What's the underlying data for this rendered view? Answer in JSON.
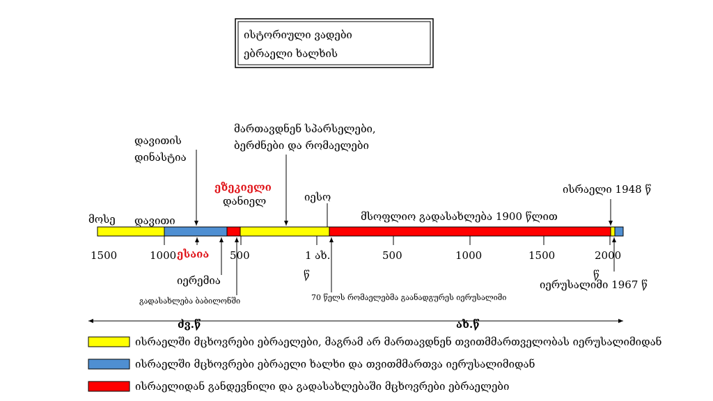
{
  "title": {
    "lines": [
      "ისტორიული ვადები",
      "ებრაელი ხალხის"
    ]
  },
  "timeline": {
    "scale_labels": [
      "1500",
      "1000",
      "500",
      "1 ახ.",
      "წ",
      "500",
      "1000",
      "1500",
      "2000",
      "წ"
    ],
    "above": {
      "mose": "მოსე",
      "davit": "დავითი",
      "dynasty": [
        "დავითის",
        "დინასტია"
      ],
      "ezekiel": "ეზეკიელი",
      "daniel": "დანიელ",
      "rulers": [
        "მართავდნენ სპარსელები,",
        "ბერძნები და რომაელები"
      ],
      "jesus": "იესო",
      "diaspora": "მსოფლიო გადასახლება 1900 წლით",
      "israel": "ისრაელი 1948 წ"
    },
    "below": {
      "isaiah": "ესაია",
      "jeremiah": "იერემია",
      "babylon": "გადასახლება ბაბილონში",
      "rome70": "70 წელს რომაელებმა გაანადგურეს იერუსალიმი",
      "jerusalem": "იერუსალიმი 1967 წ"
    },
    "eras": [
      "ძვ.წ",
      "ახ.წ"
    ]
  },
  "legend": {
    "items": [
      "ისრაელში მცხოვრები ებრაელები, მაგრამ არ მართავდნენ თვითმმართველობას იერუსალიმიდან",
      "ისრაელში მცხოვრები ებრაელი ხალხი და თვითმმართვა იერუსალიმიდან",
      "ისრაელიდან განდევნილი და გადასახლებაში მცხოვრები ებრაელები"
    ]
  }
}
